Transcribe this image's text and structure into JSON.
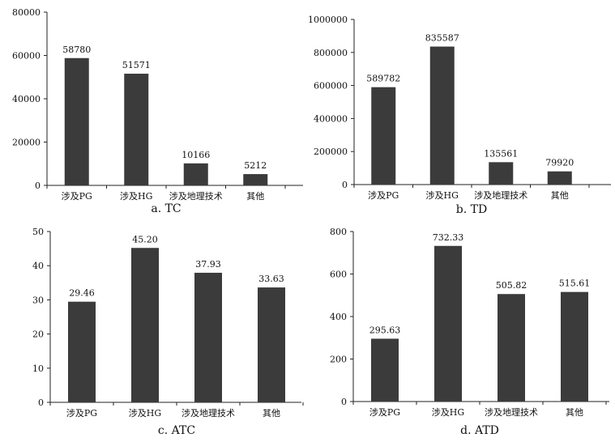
{
  "chart_data": [
    {
      "type": "bar",
      "title": "a. TC",
      "categories": [
        "涉及PG",
        "涉及HG",
        "涉及地理技术",
        "其他"
      ],
      "values": [
        58780,
        51571,
        10166,
        5212
      ],
      "value_labels": [
        "58780",
        "51571",
        "10166",
        "5212"
      ],
      "ylim": [
        0,
        80000
      ],
      "yticks": [
        "0",
        "20000",
        "40000",
        "60000",
        "80000"
      ],
      "grid": false,
      "bar_color": "#3b3b3b"
    },
    {
      "type": "bar",
      "title": "b. TD",
      "categories": [
        "涉及PG",
        "涉及HG",
        "涉及地理技术",
        "其他"
      ],
      "values": [
        589782,
        835587,
        135561,
        79920
      ],
      "value_labels": [
        "589782",
        "835587",
        "135561",
        "79920"
      ],
      "ylim": [
        0,
        1000000
      ],
      "yticks": [
        "0",
        "200000",
        "400000",
        "600000",
        "800000",
        "1000000"
      ],
      "grid": false,
      "bar_color": "#3b3b3b"
    },
    {
      "type": "bar",
      "title": "c. ATC",
      "categories": [
        "涉及PG",
        "涉及HG",
        "涉及地理技术",
        "其他"
      ],
      "values": [
        29.46,
        45.2,
        37.93,
        33.63
      ],
      "value_labels": [
        "29.46",
        "45.20",
        "37.93",
        "33.63"
      ],
      "ylim": [
        0,
        50
      ],
      "yticks": [
        "0",
        "10",
        "20",
        "30",
        "40",
        "50"
      ],
      "grid": false,
      "bar_color": "#3b3b3b"
    },
    {
      "type": "bar",
      "title": "d. ATD",
      "categories": [
        "涉及PG",
        "涉及HG",
        "涉及地理技术",
        "其他"
      ],
      "values": [
        295.63,
        732.33,
        505.82,
        515.61
      ],
      "value_labels": [
        "295.63",
        "732.33",
        "505.82",
        "515.61"
      ],
      "ylim": [
        0,
        800
      ],
      "yticks": [
        "0",
        "200",
        "400",
        "600",
        "800"
      ],
      "grid": false,
      "bar_color": "#3b3b3b"
    }
  ]
}
